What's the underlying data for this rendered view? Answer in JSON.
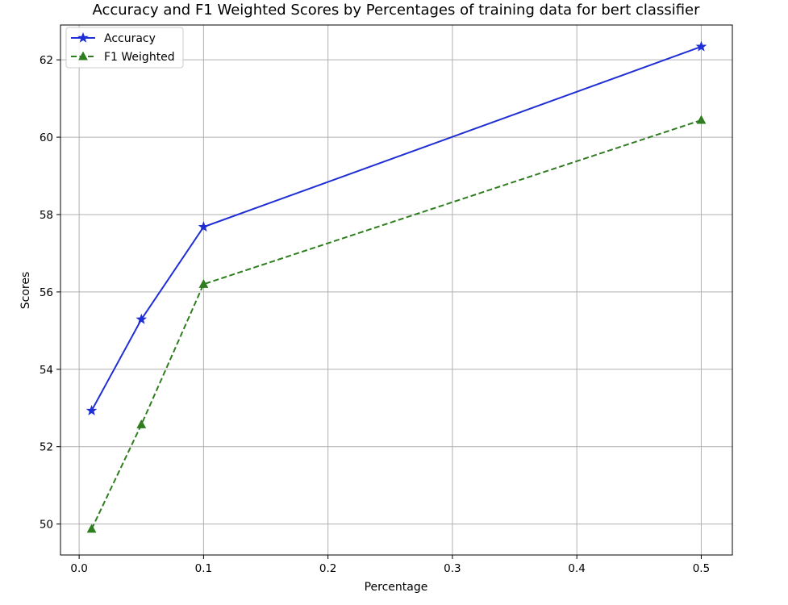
{
  "chart_data": {
    "type": "line",
    "title": "Accuracy and F1 Weighted Scores by Percentages of training data for bert classifier",
    "xlabel": "Percentage",
    "ylabel": "Scores",
    "xlim": [
      -0.015,
      0.525
    ],
    "ylim": [
      49.2,
      62.9
    ],
    "xticks": [
      0.0,
      0.1,
      0.2,
      0.3,
      0.4,
      0.5
    ],
    "xtick_labels": [
      "0.0",
      "0.1",
      "0.2",
      "0.3",
      "0.4",
      "0.5"
    ],
    "yticks": [
      50,
      52,
      54,
      56,
      58,
      60,
      62
    ],
    "ytick_labels": [
      "50",
      "52",
      "54",
      "56",
      "58",
      "60",
      "62"
    ],
    "grid": true,
    "legend_position": "top-left",
    "x": [
      0.01,
      0.05,
      0.1,
      0.5
    ],
    "series": [
      {
        "name": "Accuracy",
        "values": [
          52.93,
          55.29,
          57.68,
          62.34
        ],
        "color": "#1f2fd4",
        "line_style": "solid",
        "marker": "star"
      },
      {
        "name": "F1 Weighted",
        "values": [
          49.87,
          52.57,
          56.2,
          60.44
        ],
        "color": "#2e7d1e",
        "line_style": "dashed",
        "marker": "triangle"
      }
    ]
  }
}
